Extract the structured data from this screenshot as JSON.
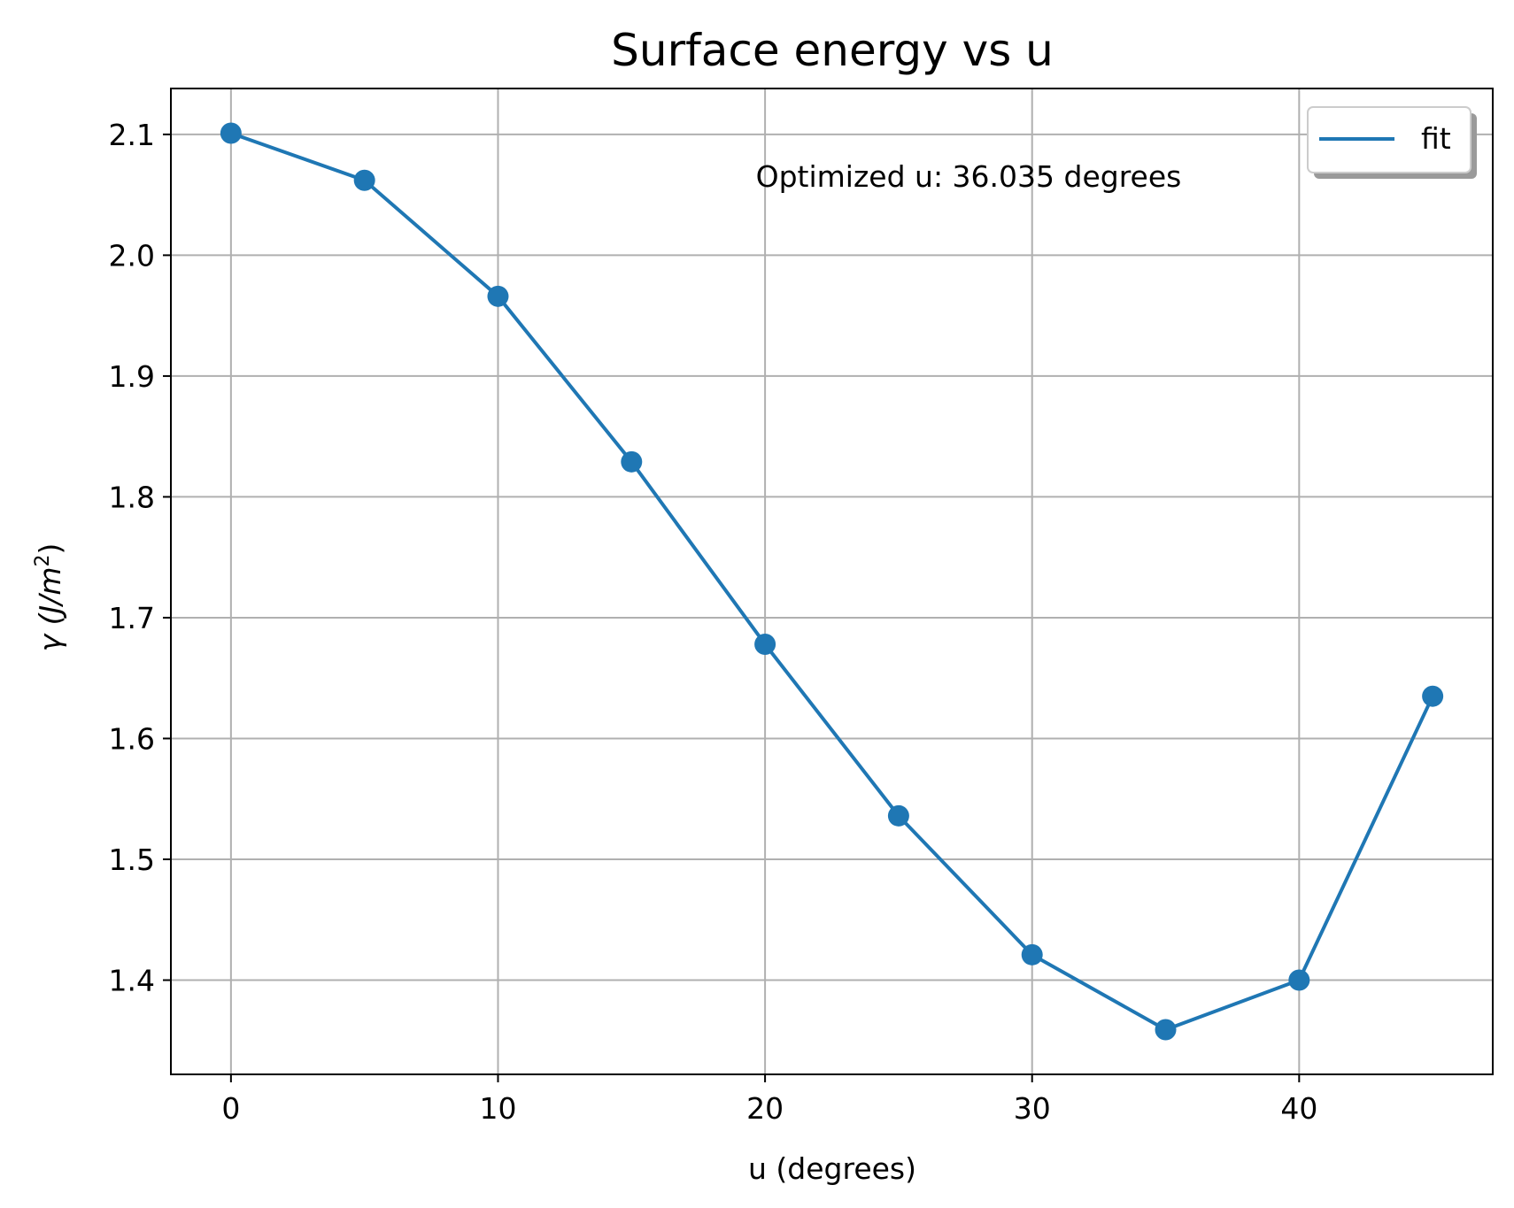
{
  "chart_data": {
    "type": "line",
    "title": "Surface energy vs u",
    "xlabel": "u (degrees)",
    "ylabel_main": "γ (J/m",
    "ylabel_sup": "2",
    "ylabel_close": ")",
    "xlim": [
      -2.25,
      47.25
    ],
    "ylim": [
      1.322,
      2.138
    ],
    "xticks": [
      0,
      10,
      20,
      30,
      40
    ],
    "yticks": [
      1.4,
      1.5,
      1.6,
      1.7,
      1.8,
      1.9,
      2.0,
      2.1
    ],
    "grid": true,
    "series": [
      {
        "name": "fit",
        "color": "#1f77b4",
        "x": [
          0,
          5,
          10,
          15,
          20,
          25,
          30,
          35,
          40,
          45
        ],
        "y": [
          2.101,
          2.062,
          1.966,
          1.829,
          1.678,
          1.536,
          1.421,
          1.359,
          1.4,
          1.635
        ]
      }
    ],
    "legend": {
      "placement": "upper right",
      "entries": [
        "fit"
      ]
    },
    "annotation": "Optimized u: 36.035 degrees"
  }
}
